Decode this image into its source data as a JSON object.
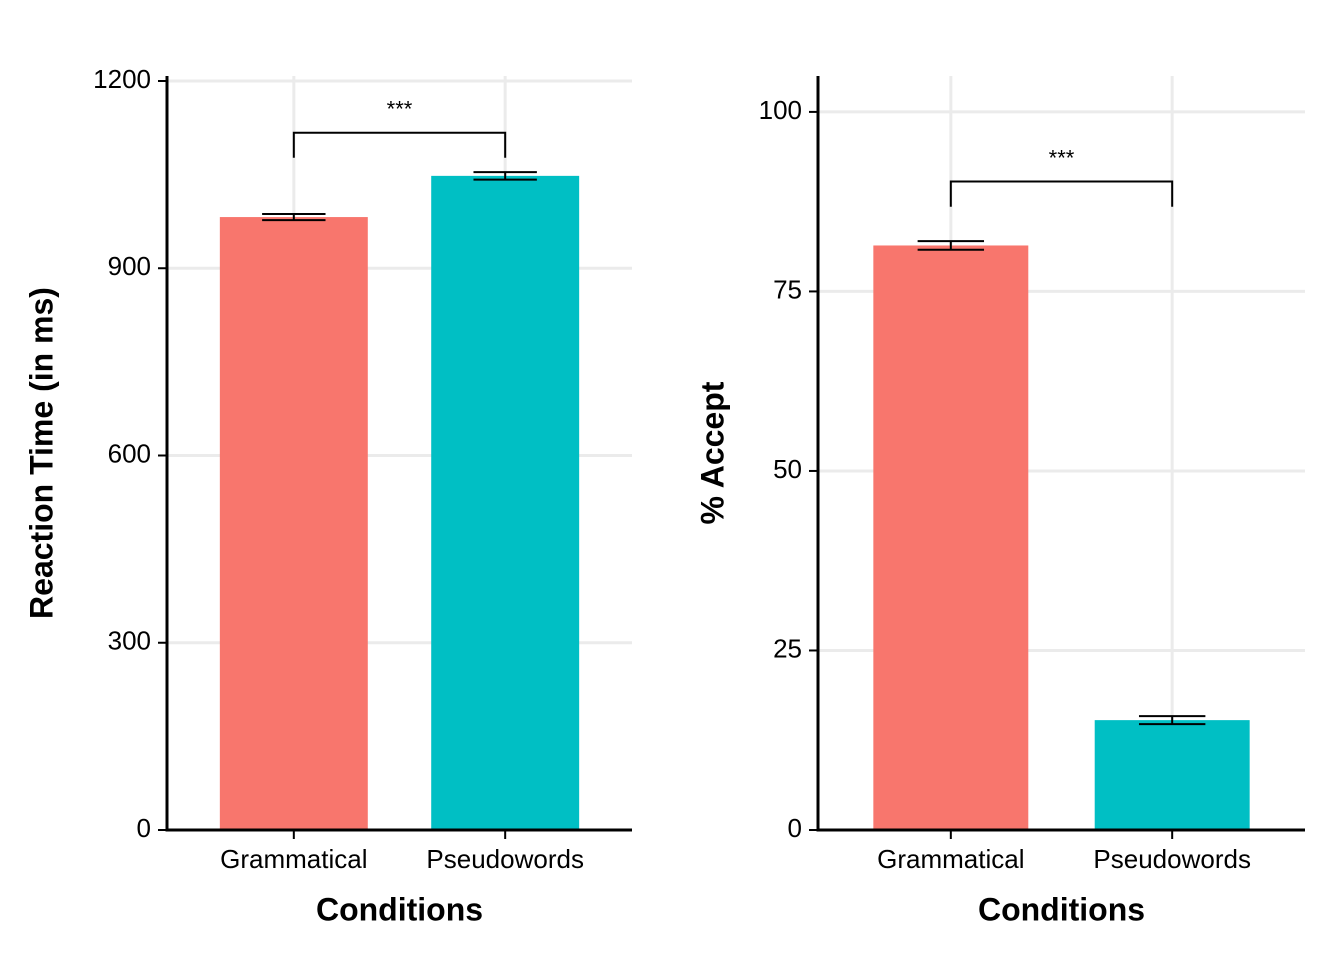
{
  "chart_data": [
    {
      "type": "bar",
      "x_label": "Conditions",
      "y_label": "Reaction Time (in ms)",
      "categories": [
        "Grammatical",
        "Pseudowords"
      ],
      "values": [
        982,
        1048
      ],
      "errors": [
        5,
        6
      ],
      "colors": [
        "#F8766D",
        "#00BFC4"
      ],
      "ylim": [
        0,
        1208
      ],
      "yticks": [
        0,
        300,
        600,
        900,
        1200
      ],
      "grid": true,
      "annotation": {
        "text": "***",
        "y": 1117,
        "y_end": 1077
      }
    },
    {
      "type": "bar",
      "x_label": "Conditions",
      "y_label": "% Accept",
      "categories": [
        "Grammatical",
        "Pseudowords"
      ],
      "values": [
        81.4,
        15.3
      ],
      "errors": [
        0.6,
        0.55
      ],
      "colors": [
        "#F8766D",
        "#00BFC4"
      ],
      "ylim": [
        0,
        105
      ],
      "yticks": [
        0,
        25,
        50,
        75,
        100
      ],
      "grid": true,
      "annotation": {
        "text": "***",
        "y": 90.3,
        "y_end": 86.8
      }
    }
  ]
}
